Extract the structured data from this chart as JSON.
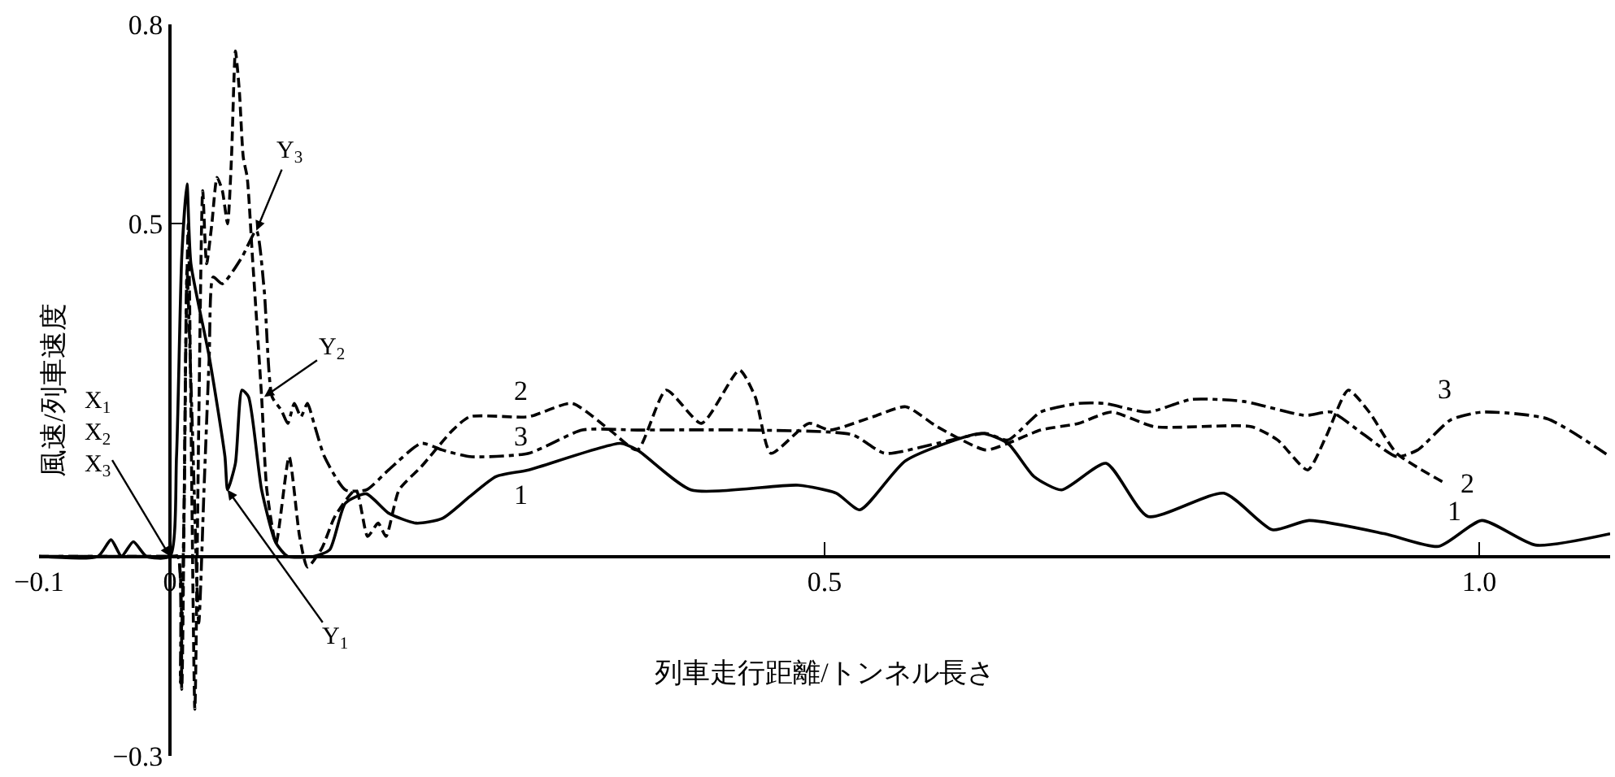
{
  "chart_data": {
    "type": "line",
    "xlabel": "列車走行距離/トンネル長さ",
    "ylabel": "風速/列車速度",
    "xlim": [
      -0.1,
      1.1
    ],
    "xticks": [
      {
        "value": -0.1,
        "label": "−0.1"
      },
      0,
      0.5,
      {
        "value": 1.0,
        "label": "1.0"
      }
    ],
    "ylim": [
      -0.3,
      0.8
    ],
    "yticks": [
      {
        "value": -0.3,
        "label": "−0.3"
      },
      0.5,
      0.8
    ],
    "grid": false,
    "legend": false,
    "marker": "none",
    "series": [
      {
        "name": "1",
        "color": "#000000",
        "line_style": "solid",
        "x": [
          -0.1,
          -0.055,
          -0.045,
          -0.037,
          -0.028,
          -0.018,
          0,
          0.005,
          0.009,
          0.013,
          0.016,
          0.03,
          0.042,
          0.044,
          0.05,
          0.055,
          0.06,
          0.07,
          0.081,
          0.09,
          0.11,
          0.122,
          0.134,
          0.15,
          0.167,
          0.188,
          0.208,
          0.229,
          0.249,
          0.274,
          0.344,
          0.357,
          0.398,
          0.48,
          0.509,
          0.527,
          0.562,
          0.62,
          0.64,
          0.66,
          0.681,
          0.715,
          0.747,
          0.805,
          0.842,
          0.87,
          0.928,
          0.969,
          1.002,
          1.043,
          1.1
        ],
        "values": [
          0,
          0,
          0.025,
          0,
          0.022,
          0,
          0,
          0.15,
          0.45,
          0.56,
          0.44,
          0.3,
          0.15,
          0.1,
          0.14,
          0.25,
          0.24,
          0.1,
          0.02,
          0,
          0,
          0.01,
          0.08,
          0.094,
          0.065,
          0.05,
          0.057,
          0.09,
          0.12,
          0.13,
          0.17,
          0.16,
          0.1,
          0.107,
          0.095,
          0.07,
          0.144,
          0.185,
          0.17,
          0.12,
          0.1,
          0.14,
          0.06,
          0.095,
          0.04,
          0.054,
          0.034,
          0.015,
          0.054,
          0.017,
          0.034
        ]
      },
      {
        "name": "2",
        "color": "#000000",
        "line_style": "dashed",
        "x": [
          -0.1,
          0,
          0.006,
          0.009,
          0.012,
          0.014,
          0.019,
          0.022,
          0.025,
          0.028,
          0.032,
          0.036,
          0.04,
          0.044,
          0.047,
          0.05,
          0.053,
          0.056,
          0.059,
          0.063,
          0.07,
          0.074,
          0.081,
          0.091,
          0.099,
          0.105,
          0.116,
          0.126,
          0.142,
          0.151,
          0.159,
          0.165,
          0.175,
          0.192,
          0.216,
          0.229,
          0.274,
          0.307,
          0.336,
          0.357,
          0.379,
          0.406,
          0.435,
          0.447,
          0.459,
          0.488,
          0.504,
          0.537,
          0.562,
          0.586,
          0.623,
          0.64,
          0.665,
          0.694,
          0.719,
          0.752,
          0.826,
          0.846,
          0.869,
          0.883,
          0.9,
          0.916,
          0.937,
          0.974
        ],
        "values": [
          0,
          0,
          0,
          -0.2,
          0.3,
          0.5,
          -0.23,
          0.2,
          0.55,
          0.44,
          0.5,
          0.57,
          0.55,
          0.5,
          0.6,
          0.76,
          0.7,
          0.6,
          0.57,
          0.45,
          0.24,
          0.1,
          0.02,
          0.15,
          0.03,
          -0.016,
          0.012,
          0.06,
          0.1,
          0.03,
          0.05,
          0.03,
          0.1,
          0.135,
          0.19,
          0.21,
          0.21,
          0.23,
          0.19,
          0.16,
          0.25,
          0.2,
          0.28,
          0.24,
          0.155,
          0.2,
          0.19,
          0.21,
          0.225,
          0.195,
          0.16,
          0.17,
          0.19,
          0.2,
          0.217,
          0.195,
          0.195,
          0.175,
          0.13,
          0.18,
          0.25,
          0.217,
          0.155,
          0.11
        ]
      },
      {
        "name": "3",
        "color": "#000000",
        "line_style": "dashdot",
        "x": [
          -0.1,
          0,
          0.006,
          0.008,
          0.011,
          0.013,
          0.017,
          0.022,
          0.026,
          0.03,
          0.033,
          0.04,
          0.055,
          0.066,
          0.072,
          0.078,
          0.085,
          0.09,
          0.095,
          0.1,
          0.105,
          0.11,
          0.118,
          0.134,
          0.15,
          0.167,
          0.192,
          0.208,
          0.229,
          0.274,
          0.315,
          0.357,
          0.44,
          0.521,
          0.546,
          0.586,
          0.623,
          0.64,
          0.665,
          0.694,
          0.714,
          0.747,
          0.78,
          0.82,
          0.867,
          0.887,
          0.912,
          0.937,
          0.953,
          0.978,
          1.002,
          1.052,
          1.1
        ],
        "values": [
          0,
          0,
          0,
          -0.19,
          0.1,
          0.43,
          0.2,
          -0.1,
          0.1,
          0.3,
          0.42,
          0.41,
          0.45,
          0.49,
          0.4,
          0.24,
          0.22,
          0.2,
          0.23,
          0.21,
          0.23,
          0.2,
          0.15,
          0.1,
          0.1,
          0.13,
          0.17,
          0.16,
          0.15,
          0.155,
          0.19,
          0.19,
          0.19,
          0.183,
          0.155,
          0.17,
          0.185,
          0.175,
          0.217,
          0.23,
          0.23,
          0.217,
          0.236,
          0.233,
          0.212,
          0.217,
          0.183,
          0.15,
          0.16,
          0.205,
          0.217,
          0.207,
          0.15
        ]
      }
    ],
    "annotations": [
      {
        "text": "X$_{1}$\nX$_{2}$\nX$_{3}$",
        "x": 0,
        "y": 0
      },
      {
        "text": "Y$_{1}$",
        "x": 0.044,
        "y": 0.1
      },
      {
        "text": "Y$_{2}$",
        "x": 0.072,
        "y": 0.24
      },
      {
        "text": "Y$_{3}$",
        "x": 0.066,
        "y": 0.49
      }
    ]
  }
}
